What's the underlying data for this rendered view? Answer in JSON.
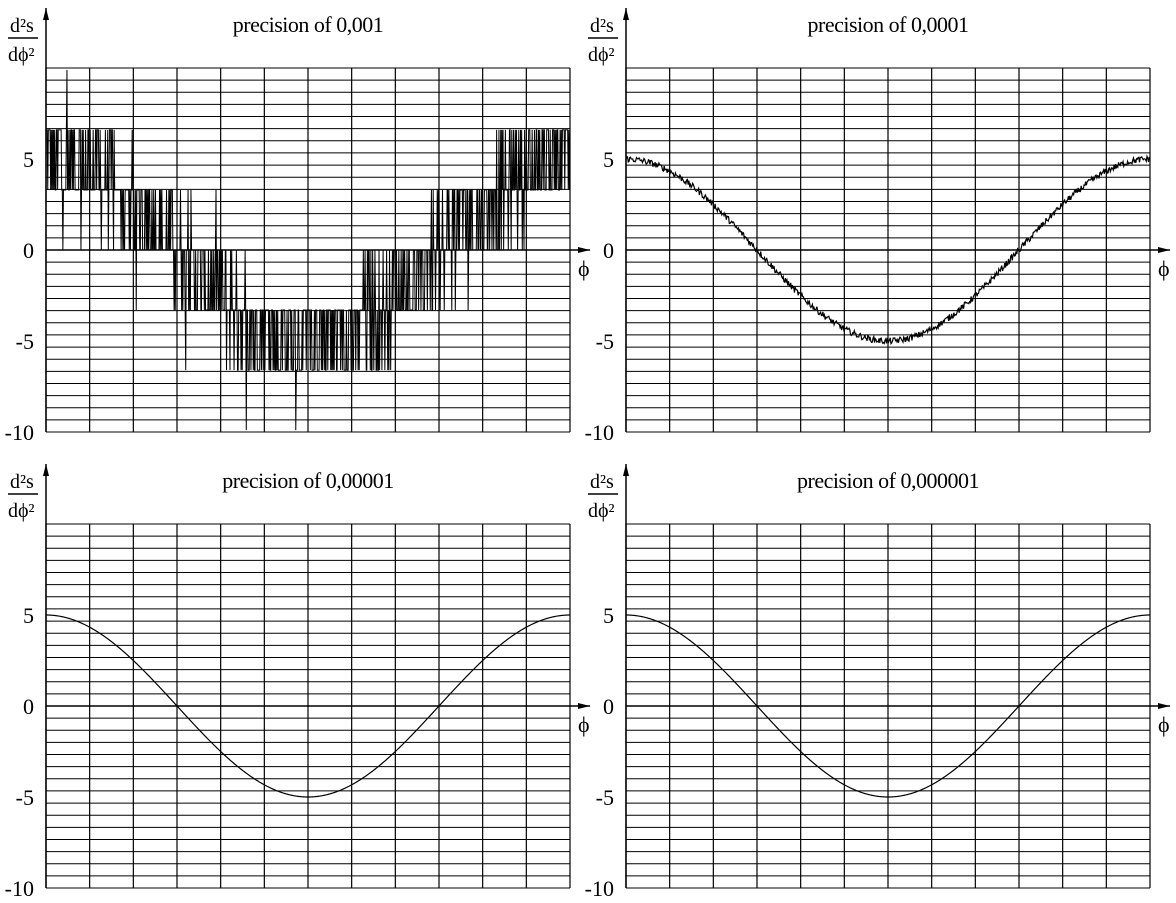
{
  "chart_data": [
    {
      "type": "line",
      "title": "precision of 0,001",
      "ylabel_num": "d²s",
      "ylabel_den": "dϕ²",
      "xlabel": "ϕ",
      "ylim": [
        -10,
        10
      ],
      "yticks": [
        "5",
        "0",
        "-5",
        "-10"
      ],
      "series": [
        {
          "amplitude": 5,
          "noise": 3.3,
          "quantized": true,
          "spikes": true
        }
      ]
    },
    {
      "type": "line",
      "title": "precision of 0,0001",
      "ylabel_num": "d²s",
      "ylabel_den": "dϕ²",
      "xlabel": "ϕ",
      "ylim": [
        -10,
        10
      ],
      "yticks": [
        "5",
        "0",
        "-5",
        "-10"
      ],
      "series": [
        {
          "amplitude": 5,
          "noise": 0.35,
          "quantized": false,
          "spikes": false
        }
      ]
    },
    {
      "type": "line",
      "title": "precision of 0,00001",
      "ylabel_num": "d²s",
      "ylabel_den": "dϕ²",
      "xlabel": "ϕ",
      "ylim": [
        -10,
        10
      ],
      "yticks": [
        "5",
        "0",
        "-5",
        "-10"
      ],
      "series": [
        {
          "amplitude": 5,
          "noise": 0,
          "quantized": false,
          "spikes": false
        }
      ]
    },
    {
      "type": "line",
      "title": "precision of 0,000001",
      "ylabel_num": "d²s",
      "ylabel_den": "dϕ²",
      "xlabel": "ϕ",
      "ylim": [
        -10,
        10
      ],
      "yticks": [
        "5",
        "0",
        "-5",
        "-10"
      ],
      "series": [
        {
          "amplitude": 5,
          "noise": 0,
          "quantized": false,
          "spikes": false
        }
      ]
    }
  ]
}
